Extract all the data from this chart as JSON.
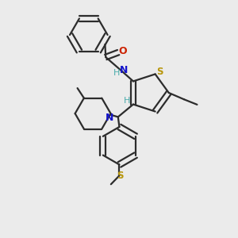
{
  "bg_color": "#ebebeb",
  "bond_color": "#2c2c2c",
  "S_color": "#b8960a",
  "N_color": "#1414cc",
  "O_color": "#cc2200",
  "H_color": "#4aacac",
  "lw": 1.6,
  "figsize": [
    3.0,
    3.0
  ],
  "dpi": 100,
  "xlim": [
    0.05,
    0.95
  ],
  "ylim": [
    0.05,
    0.95
  ]
}
